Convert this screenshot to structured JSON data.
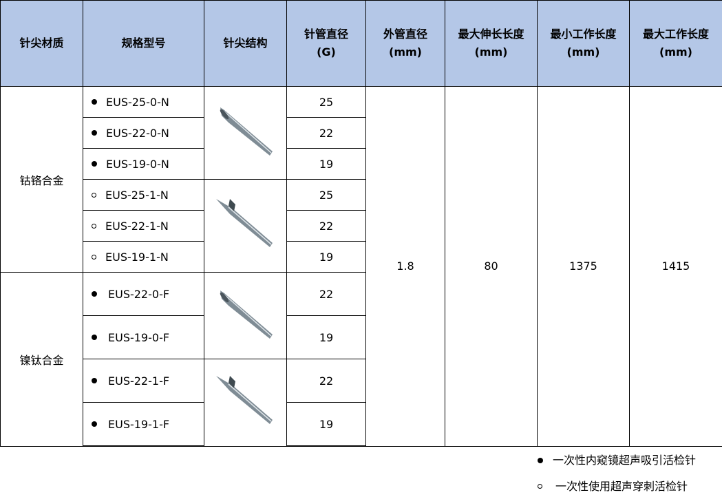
{
  "headers": [
    "针尖材质",
    "规格型号",
    "针尖结构",
    "针管直径\n(G)",
    "外管直径\n(mm)",
    "最大伸长长度\n(mm)",
    "最小工作长度\n(mm)",
    "最大工作长度\n(mm)"
  ],
  "header_lines": [
    [
      "针尖材质"
    ],
    [
      "规格型号"
    ],
    [
      "针尖结构"
    ],
    [
      "针管直径",
      "(G)"
    ],
    [
      "外管直径",
      "(mm)"
    ],
    [
      "最大伸长长度",
      "(mm)"
    ],
    [
      "最小工作长度",
      "(mm)"
    ],
    [
      "最大工作长度",
      "(mm)"
    ]
  ],
  "materials": [
    "钴铬合金",
    "镍钛合金"
  ],
  "rows": [
    {
      "model": "EUS-25-0-N",
      "gauge": "25",
      "bullet": "filled"
    },
    {
      "model": "EUS-22-0-N",
      "gauge": "22",
      "bullet": "filled"
    },
    {
      "model": "EUS-19-0-N",
      "gauge": "19",
      "bullet": "filled"
    },
    {
      "model": "EUS-25-1-N",
      "gauge": "25",
      "bullet": "hollow"
    },
    {
      "model": "EUS-22-1-N",
      "gauge": "22",
      "bullet": "hollow"
    },
    {
      "model": "EUS-19-1-N",
      "gauge": "19",
      "bullet": "hollow"
    },
    {
      "model": "EUS-22-0-F",
      "gauge": "22",
      "bullet": "filled"
    },
    {
      "model": "EUS-19-0-F",
      "gauge": "19",
      "bullet": "filled"
    },
    {
      "model": "EUS-22-1-F",
      "gauge": "22",
      "bullet": "filled"
    },
    {
      "model": "EUS-19-1-F",
      "gauge": "19",
      "bullet": "filled"
    }
  ],
  "outer_diameter": "1.8",
  "max_extension": "80",
  "min_working_length": "1375",
  "max_working_length": "1415",
  "legend": [
    {
      "bullet": "filled",
      "label": "一次性内窥镜超声吸引活检针"
    },
    {
      "bullet": "hollow",
      "label": "一次性使用超声穿刺活检针"
    }
  ],
  "colors": {
    "header_bg": "#b4c7e7"
  }
}
